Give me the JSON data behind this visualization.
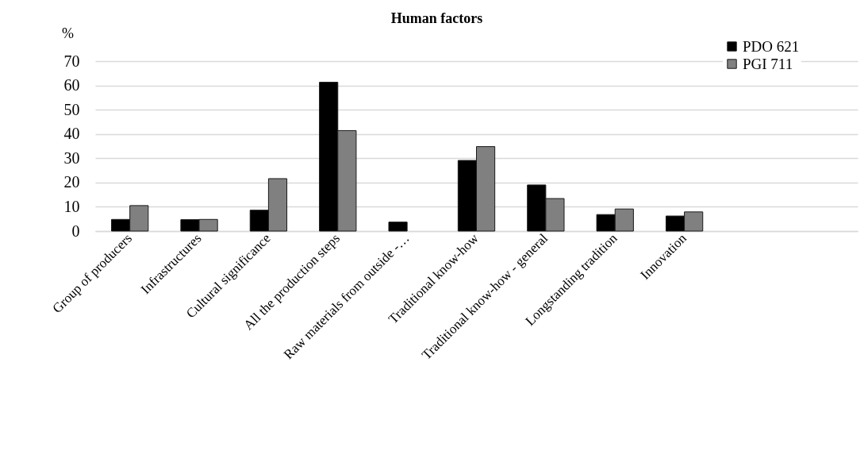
{
  "chart_data": {
    "type": "bar",
    "title": "Human factors",
    "ylabel": "%",
    "categories": [
      "Group of producers",
      "Infrastructures",
      "Cultural significance",
      "All the production steps",
      "Raw materials from outside -…",
      "Traditional know-how",
      "Traditional know-how - general",
      "Longstanding tradition",
      "Innovation",
      null,
      null
    ],
    "series": [
      {
        "name": "PDO 621",
        "color": "#000000",
        "values": [
          4.8,
          4.7,
          8.6,
          61.3,
          3.7,
          29.1,
          19.0,
          6.8,
          6.2,
          null,
          null
        ]
      },
      {
        "name": "PGI 711",
        "color": "#808080",
        "values": [
          10.5,
          4.8,
          21.6,
          41.4,
          null,
          34.8,
          13.4,
          9.1,
          7.9,
          null,
          null
        ]
      }
    ],
    "ylim": [
      0,
      70
    ],
    "yticks": [
      0,
      10,
      20,
      30,
      40,
      50,
      60,
      70
    ],
    "grid": "y",
    "legend": "top right"
  }
}
